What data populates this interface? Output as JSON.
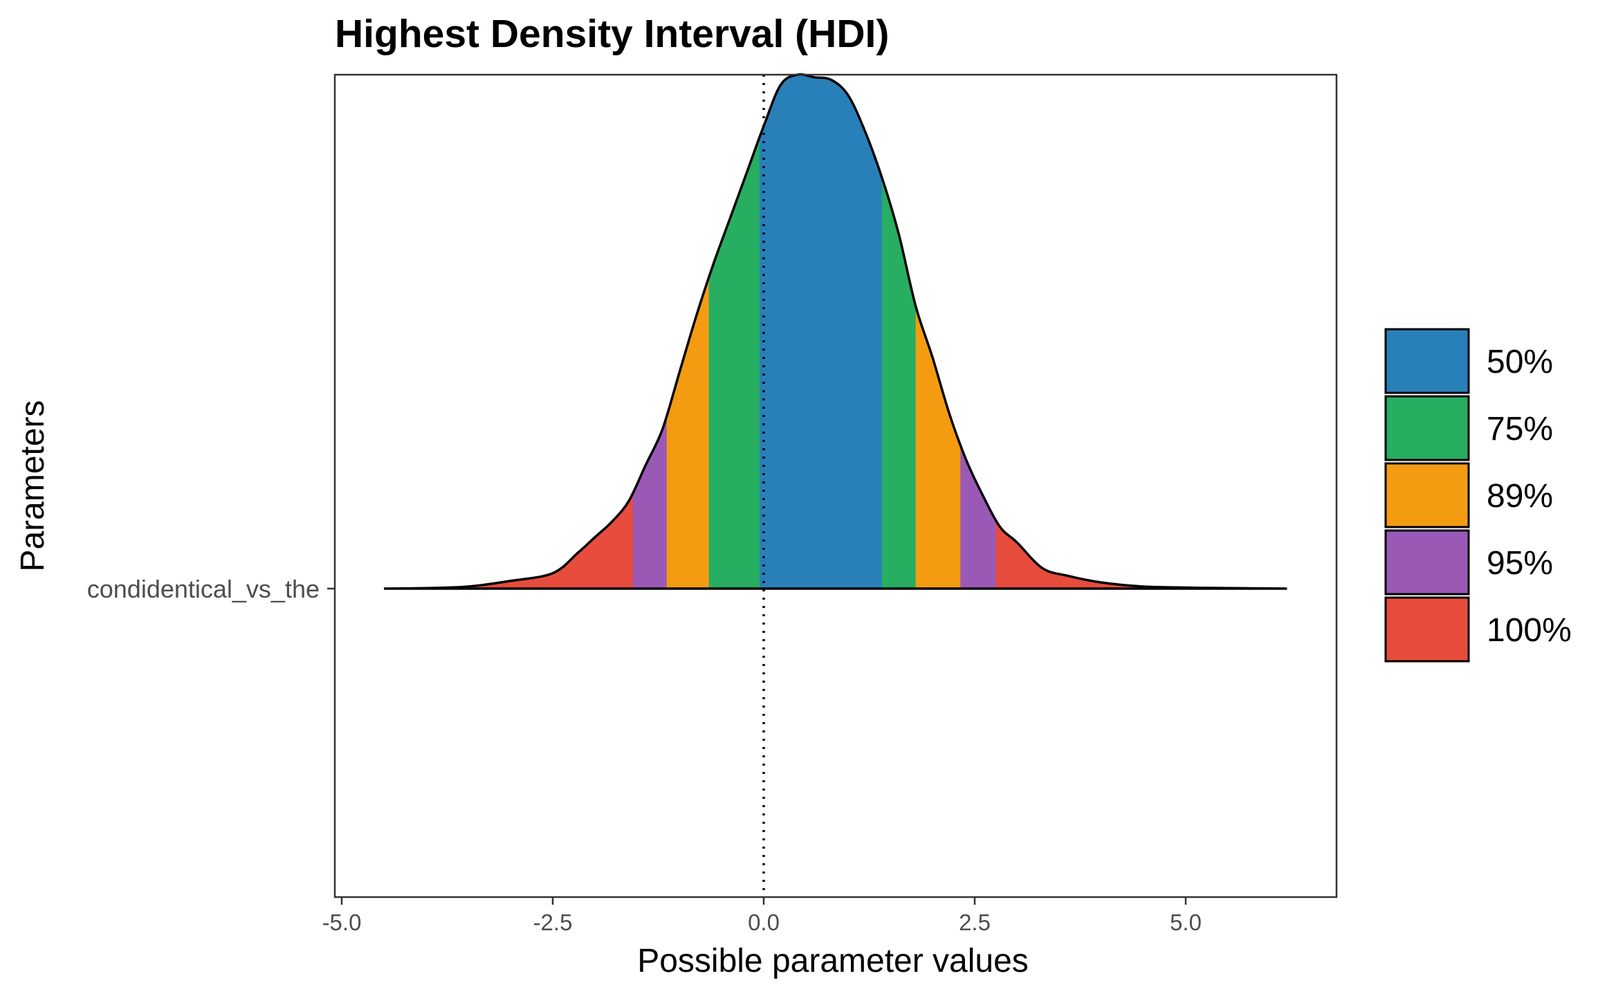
{
  "chart_data": {
    "type": "area",
    "title": "Highest Density Interval (HDI)",
    "xlabel": "Possible parameter values",
    "ylabel": "Parameters",
    "parameter": "condidentical_vs_the",
    "xlim": [
      -5.0,
      6.7
    ],
    "x_ticks": [
      -5.0,
      -2.5,
      0.0,
      2.5,
      5.0
    ],
    "x_tick_labels": [
      "-5.0",
      "-2.5",
      "0.0",
      "2.5",
      "5.0"
    ],
    "reference_line_x": 0.0,
    "reference_line_style": "dotted",
    "grid": false,
    "legend_position": "right",
    "density": {
      "x": [
        -4.5,
        -4.0,
        -3.5,
        -3.0,
        -2.5,
        -2.2,
        -2.0,
        -1.8,
        -1.6,
        -1.4,
        -1.2,
        -1.0,
        -0.8,
        -0.6,
        -0.4,
        -0.2,
        0.0,
        0.2,
        0.4,
        0.6,
        0.8,
        1.0,
        1.2,
        1.4,
        1.6,
        1.8,
        2.0,
        2.2,
        2.4,
        2.6,
        2.8,
        3.0,
        3.3,
        3.6,
        4.0,
        4.5,
        5.0,
        5.5,
        6.2
      ],
      "y": [
        0.0,
        0.001,
        0.004,
        0.015,
        0.03,
        0.07,
        0.1,
        0.13,
        0.17,
        0.24,
        0.31,
        0.42,
        0.53,
        0.63,
        0.72,
        0.81,
        0.9,
        0.98,
        1.0,
        0.995,
        0.99,
        0.96,
        0.89,
        0.8,
        0.69,
        0.55,
        0.45,
        0.34,
        0.25,
        0.18,
        0.12,
        0.09,
        0.04,
        0.025,
        0.012,
        0.004,
        0.002,
        0.001,
        0.0
      ]
    },
    "intervals": [
      {
        "name": "100%",
        "ci": 1.0,
        "low": -4.5,
        "high": 6.2,
        "color": "#E74C3C"
      },
      {
        "name": "95%",
        "ci": 0.95,
        "low": -1.55,
        "high": 2.75,
        "color": "#9B59B6"
      },
      {
        "name": "89%",
        "ci": 0.89,
        "low": -1.15,
        "high": 2.33,
        "color": "#F39C12"
      },
      {
        "name": "75%",
        "ci": 0.75,
        "low": -0.65,
        "high": 1.8,
        "color": "#27AE60"
      },
      {
        "name": "50%",
        "ci": 0.5,
        "low": -0.05,
        "high": 1.4,
        "color": "#2980B9"
      }
    ],
    "legend": [
      {
        "label": "50%",
        "color": "#2980B9"
      },
      {
        "label": "75%",
        "color": "#27AE60"
      },
      {
        "label": "89%",
        "color": "#F39C12"
      },
      {
        "label": "95%",
        "color": "#9B59B6"
      },
      {
        "label": "100%",
        "color": "#E74C3C"
      }
    ]
  }
}
